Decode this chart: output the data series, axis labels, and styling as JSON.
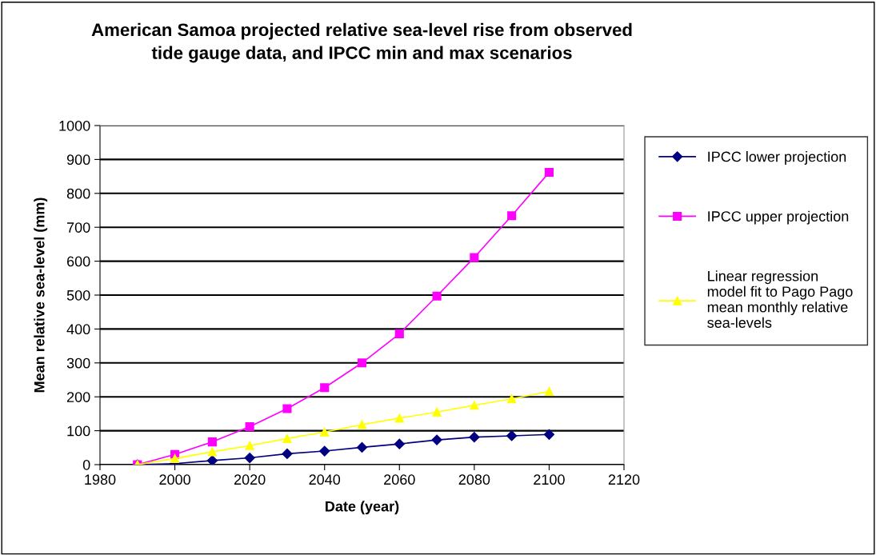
{
  "chart_data": {
    "type": "line",
    "title": "American Samoa projected relative sea-level rise from observed\ntide gauge data, and IPCC min and max scenarios",
    "xlabel": "Date (year)",
    "ylabel": "Mean relative sea-level (mm)",
    "x": [
      1990,
      2000,
      2010,
      2020,
      2030,
      2040,
      2050,
      2060,
      2070,
      2080,
      2090,
      2100
    ],
    "series": [
      {
        "name": "IPCC lower projection",
        "color": "#000080",
        "marker": "diamond",
        "values": [
          0,
          3,
          12,
          20,
          32,
          40,
          51,
          61,
          73,
          81,
          85,
          89
        ]
      },
      {
        "name": "IPCC upper projection",
        "color": "#ff00ff",
        "marker": "square",
        "values": [
          0,
          30,
          67,
          112,
          165,
          227,
          300,
          386,
          497,
          611,
          734,
          862
        ]
      },
      {
        "name": "Linear regression model fit to Pago Pago mean monthly relative sea-levels",
        "color": "#ffff00",
        "marker": "triangle",
        "values": [
          0,
          18,
          38,
          56,
          77,
          96,
          118,
          137,
          155,
          175,
          194,
          216
        ]
      }
    ],
    "xlim": [
      1980,
      2120
    ],
    "xticks": [
      1980,
      2000,
      2020,
      2040,
      2060,
      2080,
      2100,
      2120
    ],
    "ylim": [
      0,
      1000
    ],
    "yticks": [
      0,
      100,
      200,
      300,
      400,
      500,
      600,
      700,
      800,
      900,
      1000
    ],
    "grid": "y",
    "legend": "right",
    "line_style": "solid"
  }
}
